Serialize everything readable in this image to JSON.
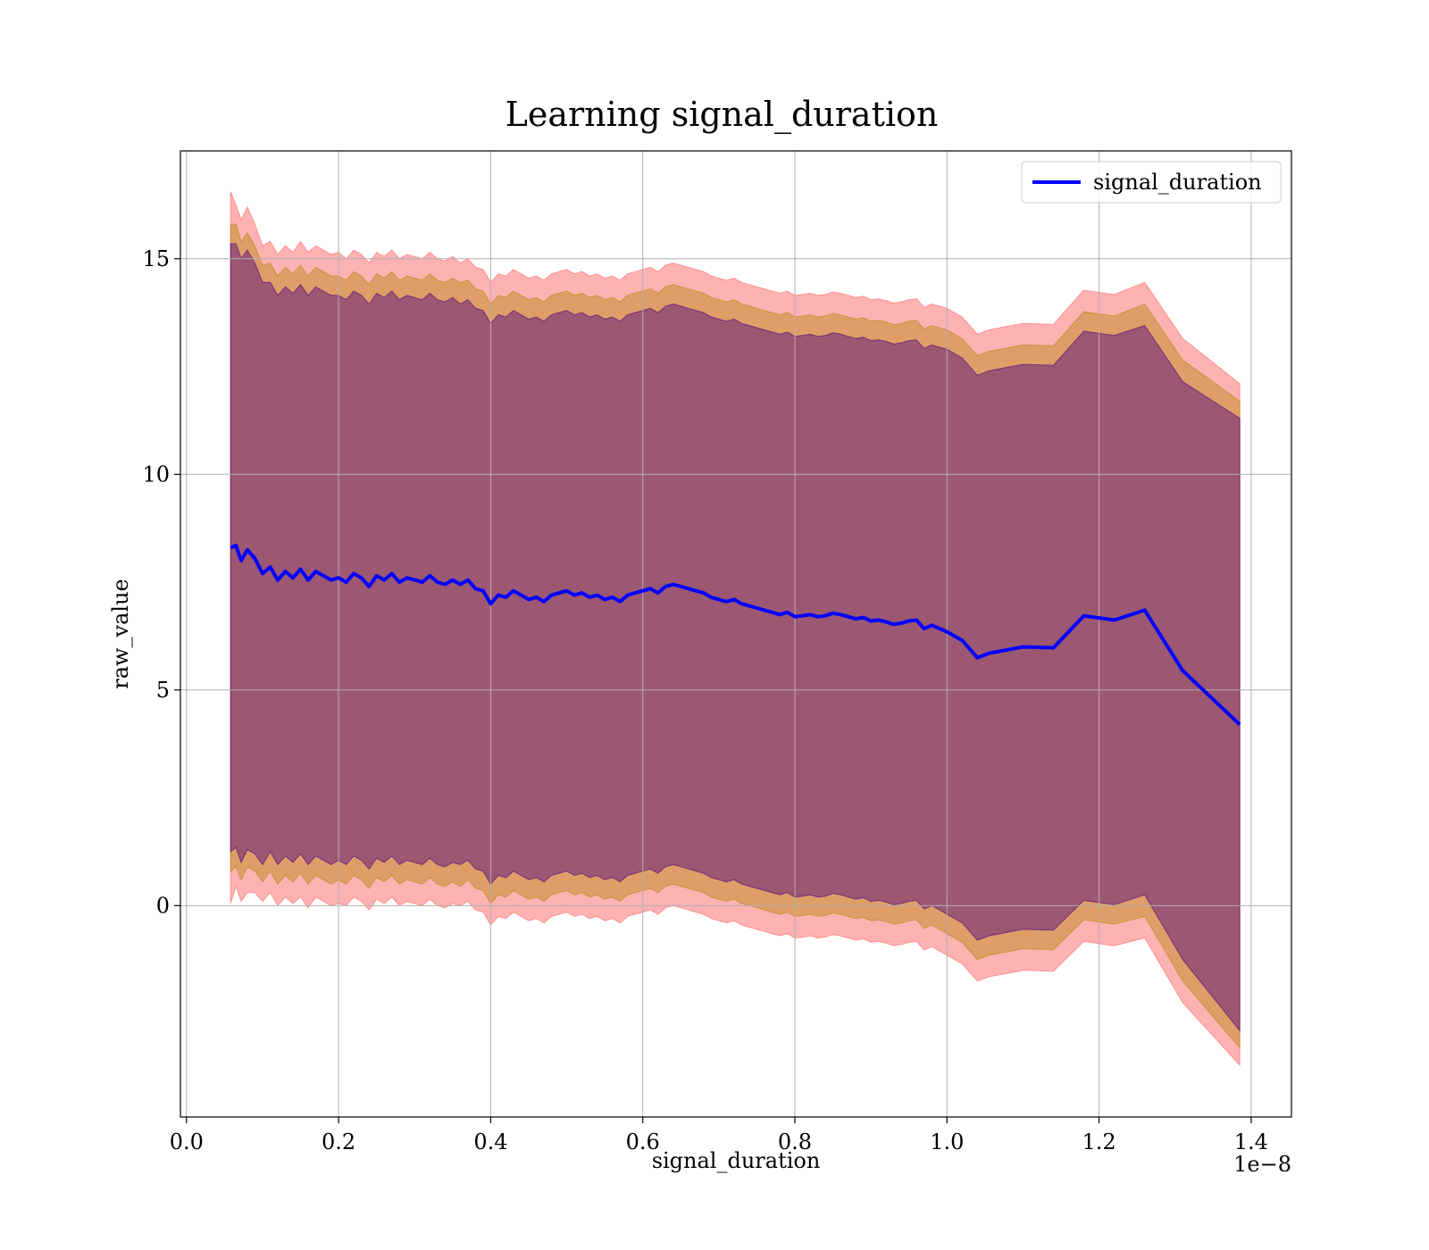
{
  "chart_data": {
    "type": "line",
    "title": "Learning signal_duration",
    "xlabel": "signal_duration",
    "ylabel": "raw_value",
    "x_offset_text": "1e−8",
    "xlim": [
      -0.008,
      1.453
    ],
    "ylim": [
      -4.9,
      17.5
    ],
    "xticks": [
      0.0,
      0.2,
      0.4,
      0.6,
      0.8,
      1.0,
      1.2,
      1.4
    ],
    "xtick_labels": [
      "0.0",
      "0.2",
      "0.4",
      "0.6",
      "0.8",
      "1.0",
      "1.2",
      "1.4"
    ],
    "yticks": [
      0,
      5,
      10,
      15
    ],
    "ytick_labels": [
      "0",
      "5",
      "10",
      "15"
    ],
    "grid": true,
    "legend_position": "top-right",
    "series": [
      {
        "name": "signal_duration",
        "color": "#0000ff",
        "x": [
          0.058,
          0.065,
          0.072,
          0.08,
          0.09,
          0.1,
          0.11,
          0.12,
          0.13,
          0.14,
          0.15,
          0.16,
          0.17,
          0.18,
          0.19,
          0.2,
          0.21,
          0.22,
          0.23,
          0.24,
          0.25,
          0.26,
          0.27,
          0.28,
          0.29,
          0.3,
          0.31,
          0.32,
          0.33,
          0.34,
          0.35,
          0.36,
          0.37,
          0.38,
          0.39,
          0.4,
          0.41,
          0.42,
          0.43,
          0.44,
          0.45,
          0.46,
          0.47,
          0.48,
          0.49,
          0.5,
          0.51,
          0.52,
          0.53,
          0.54,
          0.55,
          0.56,
          0.57,
          0.58,
          0.59,
          0.6,
          0.61,
          0.62,
          0.63,
          0.64,
          0.65,
          0.66,
          0.67,
          0.68,
          0.69,
          0.7,
          0.71,
          0.72,
          0.73,
          0.74,
          0.75,
          0.76,
          0.77,
          0.78,
          0.79,
          0.8,
          0.81,
          0.82,
          0.83,
          0.84,
          0.85,
          0.86,
          0.87,
          0.88,
          0.89,
          0.9,
          0.91,
          0.92,
          0.93,
          0.94,
          0.95,
          0.96,
          0.97,
          0.98,
          1.0,
          1.02,
          1.04,
          1.055,
          1.07,
          1.1,
          1.14,
          1.18,
          1.22,
          1.26,
          1.31,
          1.385
        ],
        "values": [
          8.3,
          8.35,
          8.0,
          8.25,
          8.05,
          7.7,
          7.85,
          7.55,
          7.75,
          7.6,
          7.8,
          7.55,
          7.75,
          7.65,
          7.55,
          7.6,
          7.5,
          7.7,
          7.6,
          7.4,
          7.65,
          7.55,
          7.7,
          7.5,
          7.6,
          7.55,
          7.5,
          7.65,
          7.5,
          7.45,
          7.55,
          7.45,
          7.55,
          7.35,
          7.3,
          7.0,
          7.2,
          7.15,
          7.3,
          7.2,
          7.1,
          7.15,
          7.05,
          7.2,
          7.25,
          7.3,
          7.2,
          7.25,
          7.15,
          7.2,
          7.1,
          7.15,
          7.05,
          7.2,
          7.25,
          7.3,
          7.35,
          7.25,
          7.4,
          7.45,
          7.4,
          7.35,
          7.3,
          7.25,
          7.15,
          7.1,
          7.05,
          7.1,
          7.0,
          6.95,
          6.9,
          6.85,
          6.8,
          6.75,
          6.8,
          6.7,
          6.72,
          6.75,
          6.7,
          6.72,
          6.78,
          6.75,
          6.7,
          6.65,
          6.68,
          6.6,
          6.62,
          6.58,
          6.52,
          6.55,
          6.6,
          6.62,
          6.42,
          6.5,
          6.35,
          6.15,
          5.75,
          5.85,
          5.9,
          6.0,
          5.98,
          6.72,
          6.62,
          6.85,
          5.45,
          4.2
        ]
      }
    ],
    "bands": [
      {
        "color": "#ff6666",
        "opacity": 0.5,
        "half_width": [
          8.25,
          7.9,
          7.9,
          7.95,
          7.75,
          7.6,
          7.55,
          7.55,
          7.55,
          7.55,
          7.6,
          7.6,
          7.55,
          7.55,
          7.55,
          7.55,
          7.5,
          7.5,
          7.5,
          7.5,
          7.5,
          7.5,
          7.5,
          7.5,
          7.5,
          7.5,
          7.5,
          7.5,
          7.5,
          7.5,
          7.5,
          7.45,
          7.45,
          7.45,
          7.45,
          7.45,
          7.45,
          7.45,
          7.45,
          7.45,
          7.45,
          7.45,
          7.45,
          7.45,
          7.45,
          7.45,
          7.45,
          7.45,
          7.45,
          7.45,
          7.45,
          7.45,
          7.45,
          7.45,
          7.45,
          7.45,
          7.45,
          7.45,
          7.45,
          7.45,
          7.45,
          7.45,
          7.45,
          7.45,
          7.45,
          7.45,
          7.45,
          7.45,
          7.45,
          7.45,
          7.45,
          7.45,
          7.45,
          7.45,
          7.45,
          7.45,
          7.45,
          7.45,
          7.45,
          7.45,
          7.45,
          7.45,
          7.45,
          7.45,
          7.45,
          7.45,
          7.45,
          7.45,
          7.45,
          7.45,
          7.45,
          7.45,
          7.45,
          7.45,
          7.5,
          7.5,
          7.5,
          7.5,
          7.5,
          7.5,
          7.5,
          7.55,
          7.55,
          7.6,
          7.7,
          7.9
        ]
      },
      {
        "color": "#b8860b",
        "opacity": 0.45,
        "half_width": [
          7.5,
          7.45,
          7.4,
          7.35,
          7.25,
          7.15,
          7.05,
          7.05,
          7.05,
          7.05,
          7.05,
          7.05,
          7.05,
          7.05,
          7.05,
          7.0,
          7.0,
          7.0,
          7.0,
          7.0,
          7.0,
          7.0,
          7.0,
          7.0,
          7.0,
          7.0,
          7.0,
          7.0,
          7.0,
          7.0,
          7.0,
          7.0,
          6.95,
          6.95,
          6.95,
          6.95,
          6.95,
          6.95,
          6.95,
          6.95,
          6.95,
          6.95,
          6.95,
          6.95,
          6.95,
          6.95,
          6.95,
          6.95,
          6.95,
          6.95,
          6.95,
          6.95,
          6.95,
          6.95,
          6.95,
          6.95,
          6.95,
          6.95,
          6.95,
          6.95,
          6.95,
          6.95,
          6.95,
          6.95,
          6.95,
          6.95,
          6.95,
          6.95,
          6.95,
          6.95,
          6.95,
          6.95,
          6.95,
          6.95,
          6.95,
          6.95,
          6.95,
          6.95,
          6.95,
          6.95,
          6.95,
          6.95,
          6.95,
          6.95,
          6.95,
          6.95,
          6.95,
          6.95,
          6.95,
          6.95,
          6.95,
          6.95,
          6.95,
          6.95,
          7.0,
          7.0,
          7.0,
          7.0,
          7.0,
          7.0,
          7.0,
          7.05,
          7.05,
          7.1,
          7.2,
          7.5
        ]
      },
      {
        "color": "#4b0082",
        "opacity": 0.45,
        "half_width": [
          7.05,
          7.0,
          7.0,
          6.95,
          6.85,
          6.75,
          6.6,
          6.6,
          6.6,
          6.6,
          6.6,
          6.6,
          6.6,
          6.6,
          6.6,
          6.55,
          6.55,
          6.55,
          6.55,
          6.55,
          6.55,
          6.55,
          6.55,
          6.55,
          6.55,
          6.55,
          6.55,
          6.55,
          6.55,
          6.55,
          6.55,
          6.5,
          6.5,
          6.5,
          6.5,
          6.5,
          6.5,
          6.5,
          6.5,
          6.5,
          6.5,
          6.5,
          6.5,
          6.5,
          6.5,
          6.5,
          6.5,
          6.5,
          6.5,
          6.5,
          6.5,
          6.5,
          6.5,
          6.5,
          6.5,
          6.5,
          6.5,
          6.5,
          6.5,
          6.5,
          6.5,
          6.5,
          6.5,
          6.5,
          6.5,
          6.5,
          6.5,
          6.5,
          6.5,
          6.5,
          6.5,
          6.5,
          6.5,
          6.5,
          6.5,
          6.5,
          6.5,
          6.5,
          6.5,
          6.5,
          6.5,
          6.5,
          6.5,
          6.5,
          6.5,
          6.5,
          6.5,
          6.5,
          6.5,
          6.5,
          6.5,
          6.5,
          6.5,
          6.5,
          6.55,
          6.55,
          6.55,
          6.55,
          6.55,
          6.55,
          6.55,
          6.6,
          6.6,
          6.6,
          6.7,
          7.1
        ]
      }
    ]
  }
}
